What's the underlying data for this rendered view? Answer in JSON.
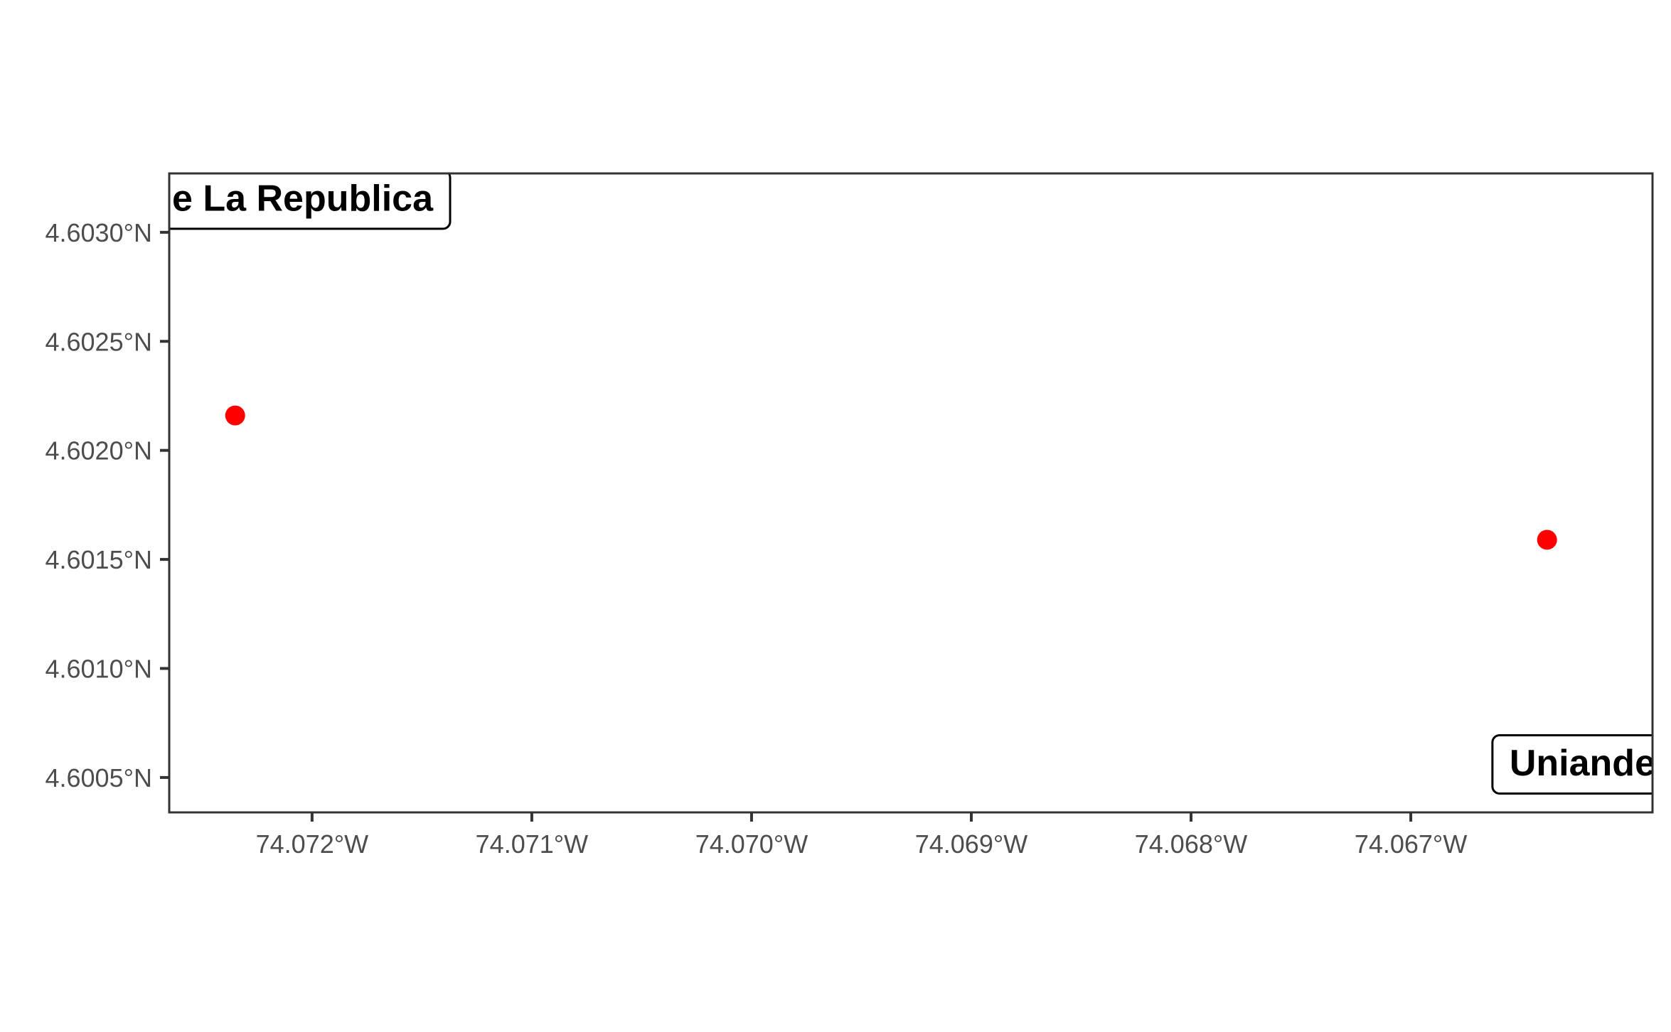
{
  "chart_data": {
    "type": "scatter",
    "title": "",
    "xlabel": "",
    "ylabel": "",
    "xlim": [
      -74.07265,
      -74.0659
    ],
    "ylim": [
      4.60034,
      4.60327
    ],
    "grid": false,
    "x_ticks": [
      {
        "value": -74.072,
        "label": "74.072°W"
      },
      {
        "value": -74.071,
        "label": "74.071°W"
      },
      {
        "value": -74.07,
        "label": "74.070°W"
      },
      {
        "value": -74.069,
        "label": "74.069°W"
      },
      {
        "value": -74.068,
        "label": "74.068°W"
      },
      {
        "value": -74.067,
        "label": "74.067°W"
      }
    ],
    "y_ticks": [
      {
        "value": 4.6005,
        "label": "4.6005°N"
      },
      {
        "value": 4.601,
        "label": "4.6010°N"
      },
      {
        "value": 4.6015,
        "label": "4.6015°N"
      },
      {
        "value": 4.602,
        "label": "4.6020°N"
      },
      {
        "value": 4.6025,
        "label": "4.6025°N"
      },
      {
        "value": 4.603,
        "label": "4.6030°N"
      }
    ],
    "points": [
      {
        "x": -74.07235,
        "y": 4.60216,
        "color": "#ff0000"
      },
      {
        "x": -74.06638,
        "y": 4.60159,
        "color": "#ff0000"
      }
    ],
    "labels": [
      {
        "text": "e La Republica",
        "x": -74.07265,
        "y": 4.60315,
        "anchor": "left"
      },
      {
        "text": "Uniande",
        "x": -74.0659,
        "y": 4.60056,
        "anchor": "right"
      }
    ],
    "colors": {
      "point": "#ff0000",
      "axis": "#333333",
      "tick_text": "#4d4d4d"
    }
  }
}
